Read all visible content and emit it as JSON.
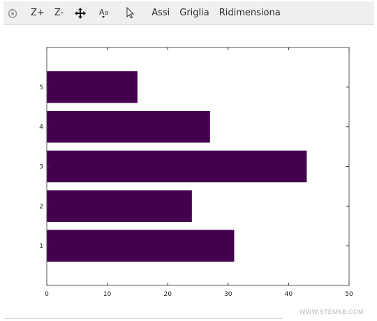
{
  "toolbar": {
    "icons": [
      "reset-icon",
      "move-icon",
      "font-size-icon",
      "pointer-icon"
    ],
    "zoom_in_label": "Z+",
    "zoom_out_label": "Z-",
    "axes_label": "Assi",
    "grid_label": "Griglia",
    "resize_label": "Ridimensiona"
  },
  "watermark": "WWW.STEMKB.COM",
  "chart_data": {
    "type": "bar",
    "orientation": "horizontal",
    "categories": [
      "1",
      "2",
      "3",
      "4",
      "5"
    ],
    "values": [
      31,
      24,
      43,
      27,
      15
    ],
    "xlim": [
      0,
      50
    ],
    "ylim": [
      0,
      6
    ],
    "xticks": [
      0,
      10,
      20,
      30,
      40,
      50
    ],
    "yticks": [
      1,
      2,
      3,
      4,
      5
    ],
    "title": "",
    "xlabel": "",
    "ylabel": "",
    "grid": false,
    "legend": false,
    "bar_color": "#44004e",
    "bar_width": 0.8
  }
}
